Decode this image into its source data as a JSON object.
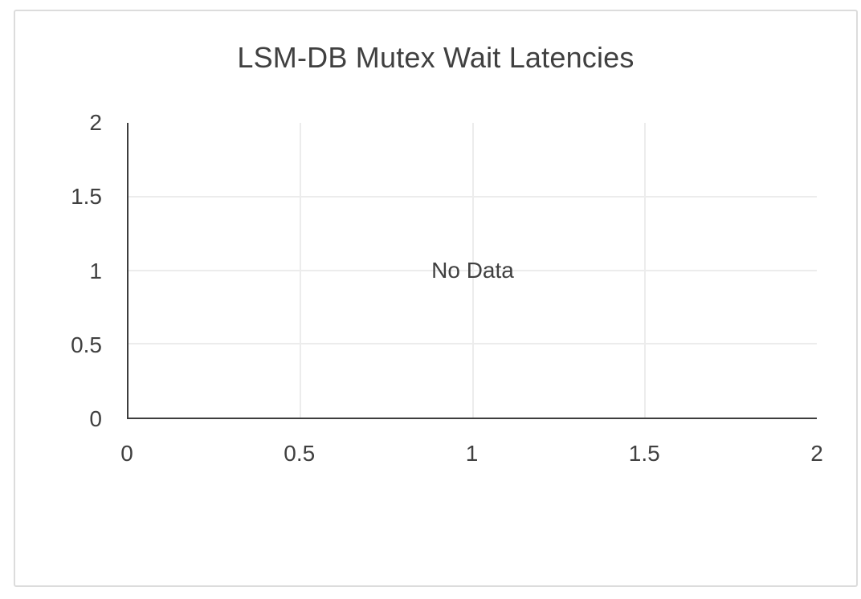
{
  "chart": {
    "title": "LSM-DB Mutex Wait Latencies",
    "no_data_label": "No Data"
  },
  "chart_data": {
    "type": "line",
    "title": "LSM-DB Mutex Wait Latencies",
    "series": [],
    "annotations": [
      {
        "text": "No Data",
        "x": 1,
        "y": 1
      }
    ],
    "xlabel": "",
    "ylabel": "",
    "xlim": [
      0,
      2
    ],
    "ylim": [
      0,
      2
    ],
    "xticks": {
      "values": [
        0,
        0.5,
        1,
        1.5,
        2
      ],
      "labels": [
        "0",
        "0.5",
        "1",
        "1.5",
        "2"
      ]
    },
    "yticks": {
      "values": [
        0,
        0.5,
        1,
        1.5,
        2
      ],
      "labels": [
        "2",
        "1.5",
        "1",
        "0.5",
        "0"
      ],
      "values_top_to_bottom": [
        2,
        1.5,
        1,
        0.5,
        0
      ]
    },
    "grid": true,
    "grid_interior_only": true,
    "legend": false,
    "colors": {
      "background": "#ffffff",
      "card_border": "#dcdcdc",
      "axis": "#3d3d3d",
      "grid": "#ececec",
      "text": "#404040"
    }
  }
}
